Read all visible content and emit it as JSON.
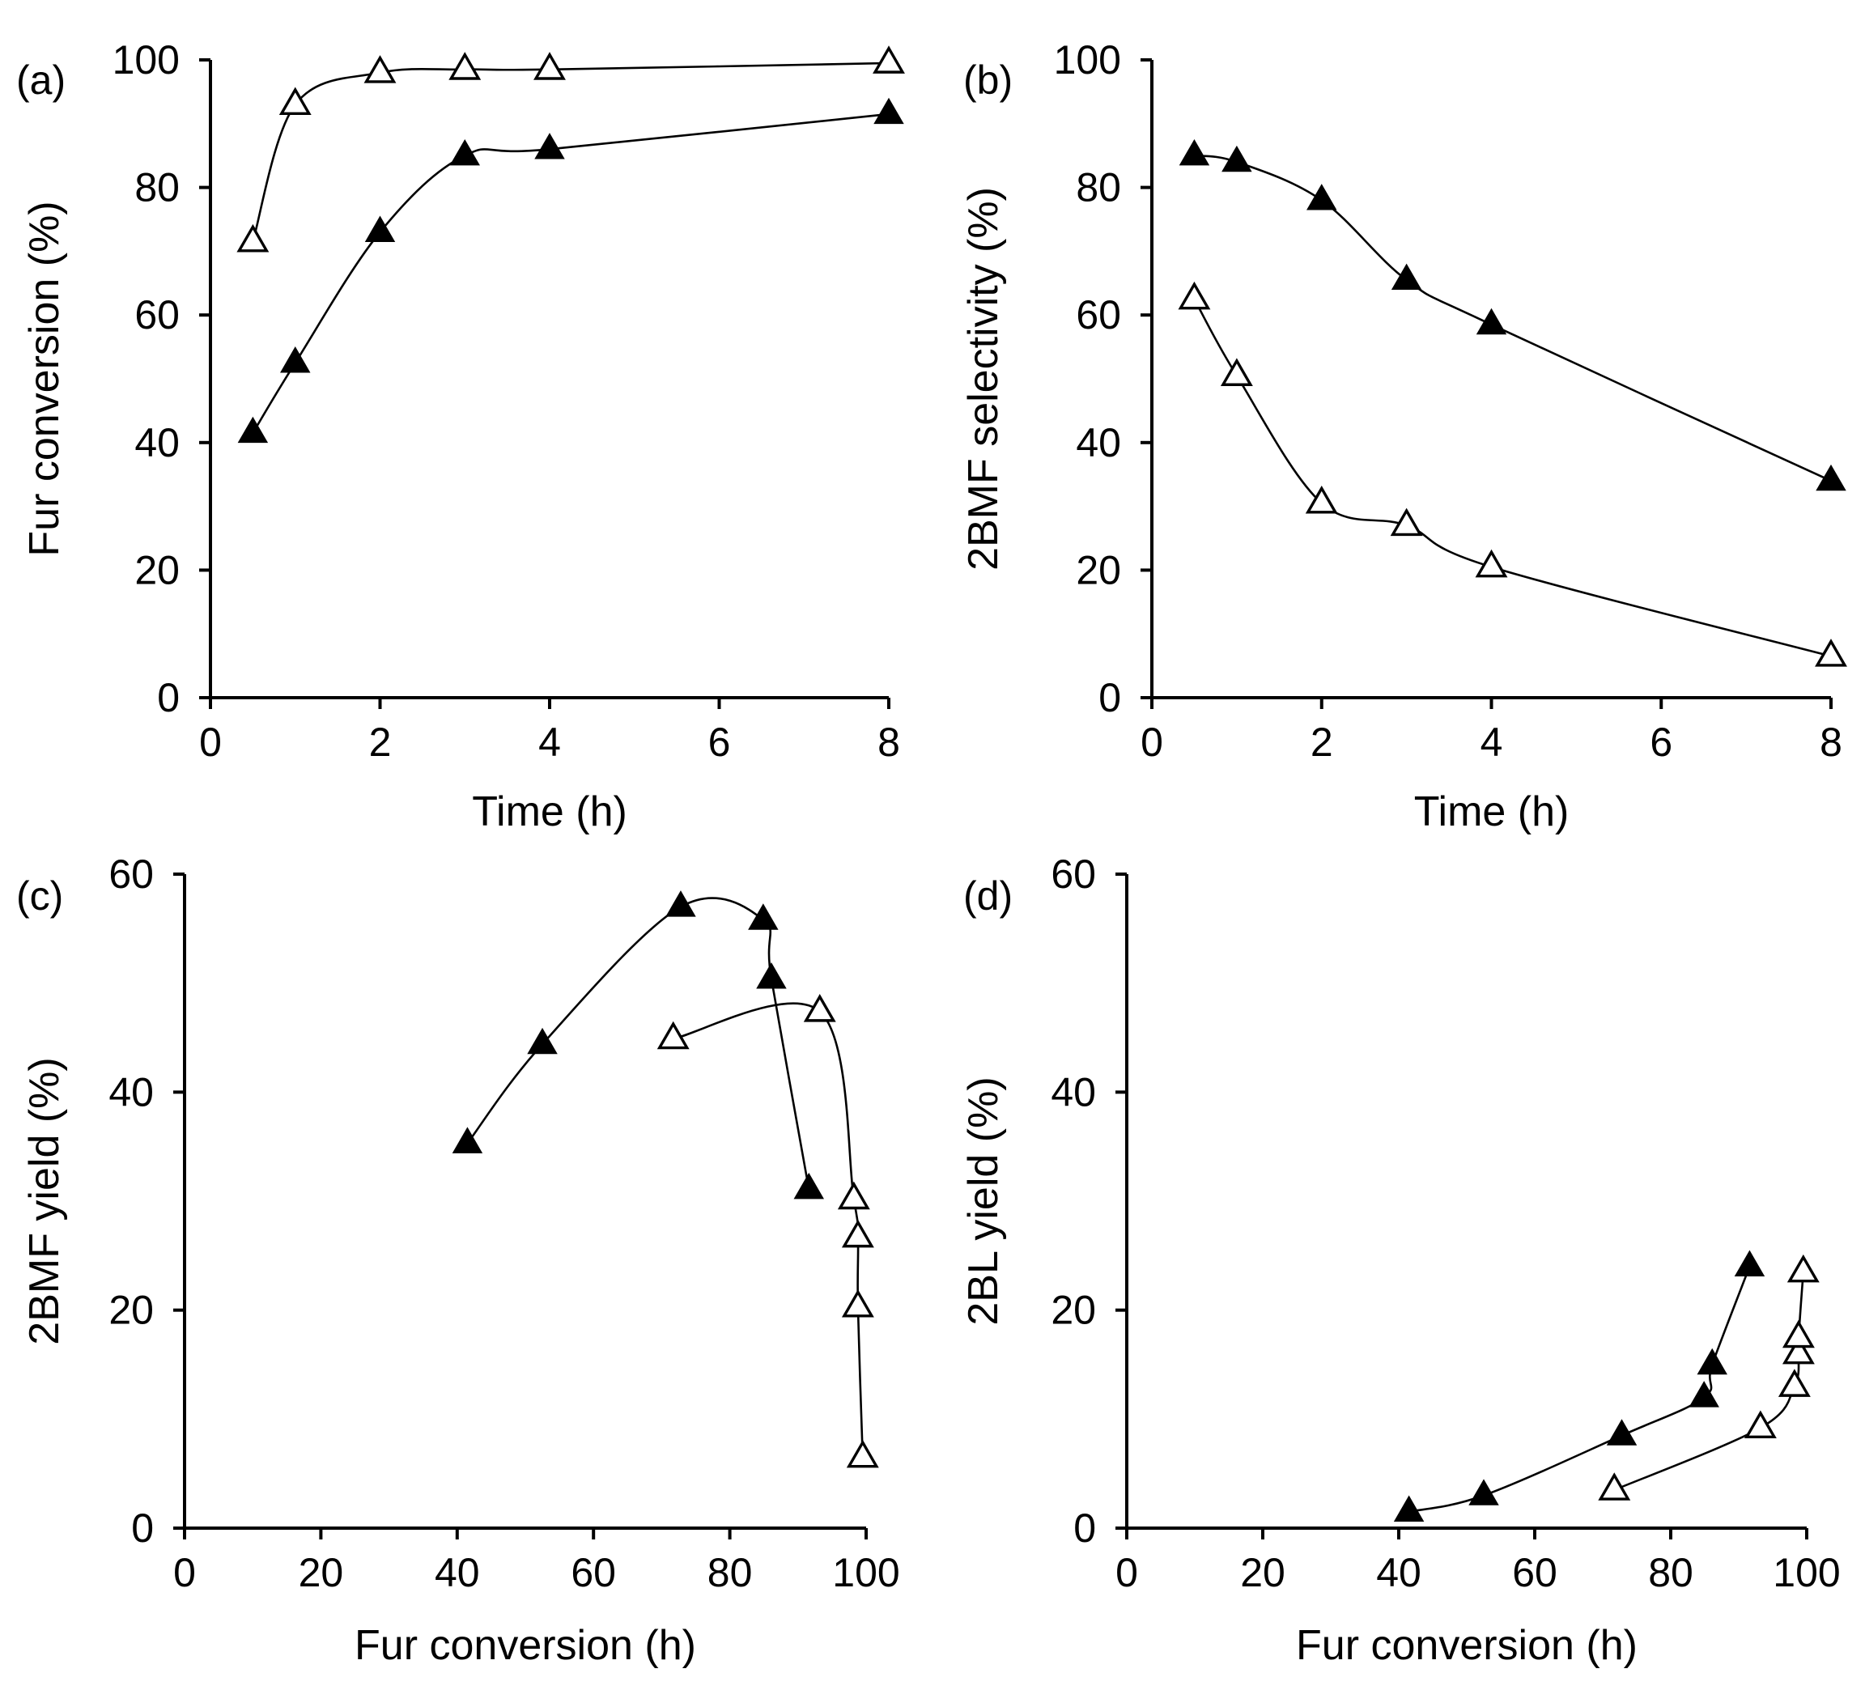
{
  "chart_data": [
    {
      "id": "a",
      "type": "line",
      "panel_label": "(a)",
      "xlabel": "Time (h)",
      "ylabel": "Fur conversion (%)",
      "xlim": [
        0,
        8
      ],
      "ylim": [
        0,
        100
      ],
      "xticks": [
        0,
        2,
        4,
        6,
        8
      ],
      "yticks": [
        0,
        20,
        40,
        60,
        80,
        100
      ],
      "grid": false,
      "smooth": true,
      "series": [
        {
          "marker": "filled-triangle",
          "x": [
            0.5,
            1,
            2,
            3,
            4,
            8
          ],
          "y": [
            41.5,
            52.5,
            73,
            85,
            86,
            91.5
          ]
        },
        {
          "marker": "open-triangle",
          "x": [
            0.5,
            1,
            2,
            3,
            4,
            8
          ],
          "y": [
            71.5,
            93,
            98,
            98.5,
            98.5,
            99.5
          ]
        }
      ]
    },
    {
      "id": "b",
      "type": "line",
      "panel_label": "(b)",
      "xlabel": "Time (h)",
      "ylabel": "2BMF selectivity (%)",
      "xlim": [
        0,
        8
      ],
      "ylim": [
        0,
        100
      ],
      "xticks": [
        0,
        2,
        4,
        6,
        8
      ],
      "yticks": [
        0,
        20,
        40,
        60,
        80,
        100
      ],
      "grid": false,
      "smooth": true,
      "series": [
        {
          "marker": "filled-triangle",
          "x": [
            0.5,
            1,
            2,
            3,
            4,
            8
          ],
          "y": [
            85,
            84,
            78,
            65.5,
            58.5,
            34
          ]
        },
        {
          "marker": "open-triangle",
          "x": [
            0.5,
            1,
            2,
            3,
            4,
            8
          ],
          "y": [
            62.5,
            50.5,
            30.5,
            27,
            20.5,
            6.5
          ]
        }
      ]
    },
    {
      "id": "c",
      "type": "line",
      "panel_label": "(c)",
      "xlabel": "Fur conversion (h)",
      "ylabel": "2BMF yield (%)",
      "xlim": [
        0,
        100
      ],
      "ylim": [
        0,
        60
      ],
      "xticks": [
        0,
        20,
        40,
        60,
        80,
        100
      ],
      "yticks": [
        0,
        20,
        40,
        60
      ],
      "grid": false,
      "smooth": true,
      "series": [
        {
          "marker": "filled-triangle",
          "x": [
            41.5,
            52.5,
            72.8,
            84.9,
            86.1,
            91.6
          ],
          "y": [
            35.3,
            44.4,
            57,
            55.8,
            50.4,
            31.1
          ]
        },
        {
          "marker": "open-triangle",
          "x": [
            71.7,
            93.2,
            98.2,
            98.8,
            98.8,
            99.5
          ],
          "y": [
            44.9,
            47.4,
            30.2,
            26.7,
            20.3,
            6.5
          ]
        }
      ]
    },
    {
      "id": "d",
      "type": "line",
      "panel_label": "(d)",
      "xlabel": "Fur conversion (h)",
      "ylabel": "2BL yield (%)",
      "xlim": [
        0,
        100
      ],
      "ylim": [
        0,
        60
      ],
      "xticks": [
        0,
        20,
        40,
        60,
        80,
        100
      ],
      "yticks": [
        0,
        20,
        40,
        60
      ],
      "grid": false,
      "smooth": true,
      "series": [
        {
          "marker": "filled-triangle",
          "x": [
            41.5,
            52.5,
            72.8,
            84.9,
            86.1,
            91.6
          ],
          "y": [
            1.5,
            3,
            8.5,
            12,
            15,
            24
          ]
        },
        {
          "marker": "open-triangle",
          "x": [
            71.7,
            93.2,
            98.2,
            98.8,
            98.8,
            99.5
          ],
          "y": [
            3.5,
            9.2,
            13,
            16,
            17.5,
            23.5
          ]
        }
      ]
    }
  ]
}
